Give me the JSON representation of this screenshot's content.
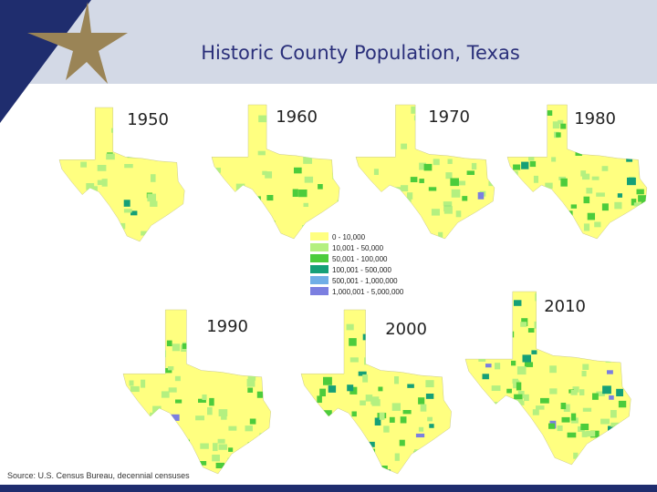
{
  "header": {
    "title": "Historic County Population, Texas"
  },
  "maps": [
    {
      "year": "1950"
    },
    {
      "year": "1960"
    },
    {
      "year": "1970"
    },
    {
      "year": "1980"
    },
    {
      "year": "1990"
    },
    {
      "year": "2000"
    },
    {
      "year": "2010"
    }
  ],
  "legend": [
    {
      "label": "0 - 10,000",
      "color": "#ffff80"
    },
    {
      "label": "10,001 - 50,000",
      "color": "#b4f080"
    },
    {
      "label": "50,001 - 100,000",
      "color": "#4ccc3c"
    },
    {
      "label": "100,001 - 500,000",
      "color": "#15a077"
    },
    {
      "label": "500,001 - 1,000,000",
      "color": "#70aee6"
    },
    {
      "label": "1,000,001 - 5,000,000",
      "color": "#7b7fe0"
    }
  ],
  "footer": {
    "source": "Source: U.S. Census Bureau, decennial censuses"
  }
}
